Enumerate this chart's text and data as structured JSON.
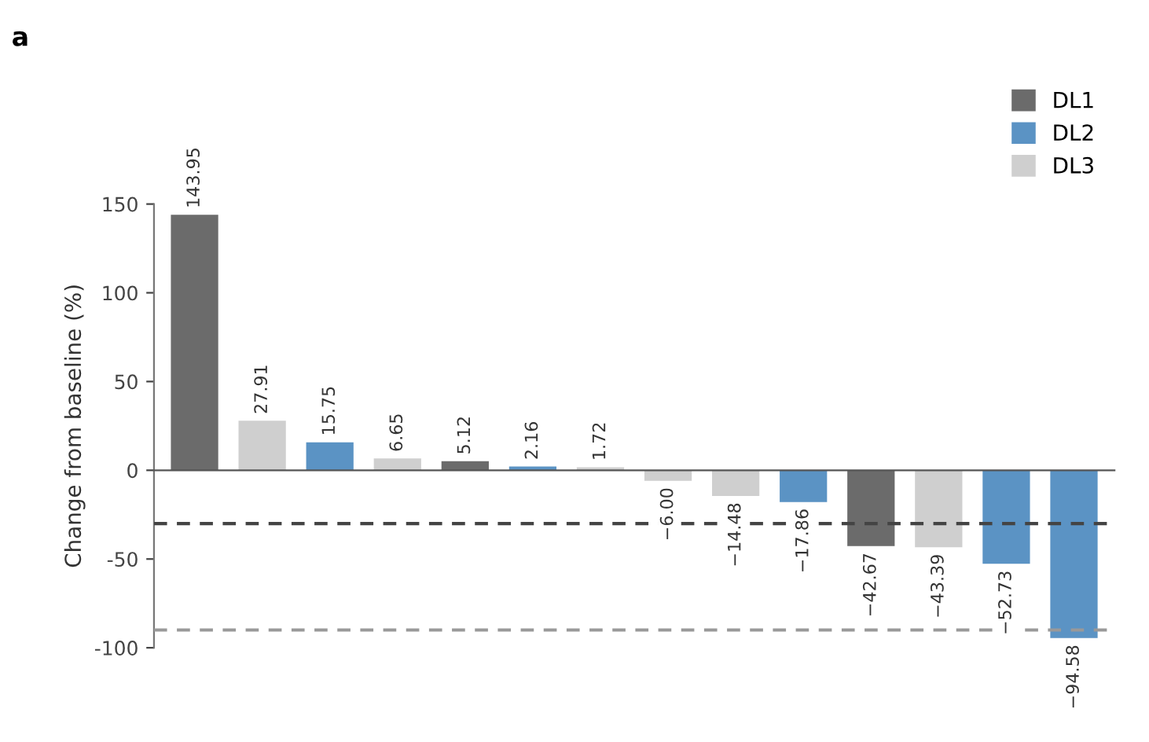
{
  "chart_data": {
    "type": "bar",
    "ylabel": "Change from baseline (%)",
    "annotations": [
      "a"
    ],
    "categories": [
      null,
      null,
      null,
      null,
      null,
      null,
      null,
      null,
      null,
      null,
      null,
      null,
      null,
      null
    ],
    "series": [
      {
        "name": "DL1",
        "color": "#6b6b6b",
        "values": [
          143.95,
          null,
          null,
          null,
          5.12,
          null,
          null,
          null,
          null,
          null,
          -42.67,
          null,
          null,
          null
        ],
        "value_labels": [
          "143.95",
          null,
          null,
          null,
          "5.12",
          null,
          null,
          null,
          null,
          null,
          "−42.67",
          null,
          null,
          null
        ]
      },
      {
        "name": "DL2",
        "color": "#5b93c4",
        "values": [
          null,
          null,
          15.75,
          null,
          null,
          2.16,
          null,
          null,
          null,
          -17.86,
          null,
          null,
          -52.73,
          -94.58
        ],
        "value_labels": [
          null,
          null,
          "15.75",
          null,
          null,
          "2.16",
          null,
          null,
          null,
          "−17.86",
          null,
          null,
          "−52.73",
          "−94.58"
        ]
      },
      {
        "name": "DL3",
        "color": "#cfcfcf",
        "values": [
          null,
          27.91,
          null,
          6.65,
          null,
          null,
          1.72,
          -6.0,
          -14.48,
          null,
          null,
          -43.39,
          null,
          null
        ],
        "value_labels": [
          null,
          "27.91",
          null,
          "6.65",
          null,
          null,
          "1.72",
          "−6.00",
          "−14.48",
          null,
          null,
          "−43.39",
          null,
          null
        ]
      }
    ],
    "ylim": [
      -100,
      150
    ],
    "yticks": [
      -100,
      -50,
      0,
      50,
      100,
      150
    ],
    "ref_lines": [
      {
        "axis": "y",
        "value": -30,
        "color": "#444444",
        "line_style": "dashed"
      },
      {
        "axis": "y",
        "value": -90,
        "color": "#999999",
        "line_style": "dashed"
      }
    ],
    "legend": "top right"
  }
}
